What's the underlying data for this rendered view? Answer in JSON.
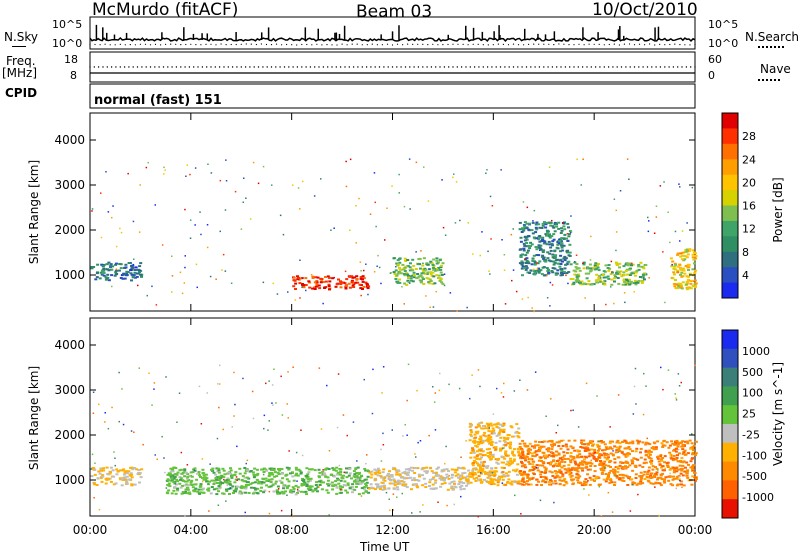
{
  "header": {
    "station": "McMurdo (fitACF)",
    "beam": "Beam 03",
    "date": "10/Oct/2010"
  },
  "top_panels": {
    "nsky_label": "N.Sky",
    "nsky_ticks": [
      "10^5",
      "10^0"
    ],
    "nsearch_label": "N.Search",
    "nsearch_ticks": [
      "10^5",
      "10^0"
    ],
    "freq_label_1": "Freq.",
    "freq_label_2": "[MHz]",
    "freq_ticks": [
      "18",
      "8"
    ],
    "nave_label": "Nave",
    "nave_ticks": [
      "60",
      "0"
    ],
    "cpid_label": "CPID",
    "cpid_value": "normal (fast) 151"
  },
  "chart_data": [
    {
      "type": "heatmap",
      "name": "power",
      "ylabel": "Slant Range [km]",
      "xlim": [
        "00:00",
        "24:00"
      ],
      "ylim": [
        200,
        4600
      ],
      "yticks": [
        1000,
        2000,
        3000,
        4000
      ],
      "colorbar": {
        "label": "Power [dB]",
        "ticks": [
          "28",
          "24",
          "20",
          "16",
          "12",
          "8",
          "4"
        ],
        "colors": [
          "#e00000",
          "#ff3000",
          "#ff7000",
          "#ff9e00",
          "#ffc300",
          "#d5d200",
          "#7fbf50",
          "#3ea468",
          "#2f8f62",
          "#306f80",
          "#2a4fc0",
          "#1a2aef"
        ]
      },
      "features": [
        {
          "range_km": [
            900,
            1300
          ],
          "time_h": [
            0,
            2
          ],
          "level_db": 6
        },
        {
          "range_km": [
            700,
            1000
          ],
          "time_h": [
            8,
            11
          ],
          "level_db": 30
        },
        {
          "range_km": [
            800,
            1400
          ],
          "time_h": [
            12,
            14
          ],
          "level_db": 14
        },
        {
          "range_km": [
            1000,
            2200
          ],
          "time_h": [
            17,
            19
          ],
          "level_db": 8
        },
        {
          "range_km": [
            800,
            1300
          ],
          "time_h": [
            19,
            22
          ],
          "level_db": 14
        },
        {
          "range_km": [
            700,
            1600
          ],
          "time_h": [
            23,
            24
          ],
          "level_db": 20
        }
      ]
    },
    {
      "type": "heatmap",
      "name": "velocity",
      "ylabel": "Slant Range [km]",
      "xlabel": "Time UT",
      "xticks": [
        "00:00",
        "04:00",
        "08:00",
        "12:00",
        "16:00",
        "20:00",
        "00:00"
      ],
      "ylim": [
        200,
        4600
      ],
      "yticks": [
        1000,
        2000,
        3000,
        4000
      ],
      "colorbar": {
        "label": "Velocity [m s^-1]",
        "ticks": [
          "1000",
          "500",
          "100",
          "25",
          "-25",
          "-100",
          "-500",
          "-1000"
        ],
        "colors": [
          "#1a2aef",
          "#3050c0",
          "#3a7f78",
          "#40a050",
          "#63c33a",
          "#bfbfbf",
          "#ffb000",
          "#ff8a00",
          "#ff6000",
          "#e81000"
        ]
      },
      "features": [
        {
          "range_km": [
            900,
            1300
          ],
          "time_h": [
            0,
            2
          ],
          "velocity": -300
        },
        {
          "range_km": [
            700,
            1300
          ],
          "time_h": [
            3,
            11
          ],
          "velocity": 150
        },
        {
          "range_km": [
            800,
            1300
          ],
          "time_h": [
            11,
            15
          ],
          "velocity": -200
        },
        {
          "range_km": [
            900,
            2300
          ],
          "time_h": [
            15,
            17
          ],
          "velocity": -400
        },
        {
          "range_km": [
            900,
            1900
          ],
          "time_h": [
            17,
            24
          ],
          "velocity": -700
        }
      ]
    }
  ]
}
